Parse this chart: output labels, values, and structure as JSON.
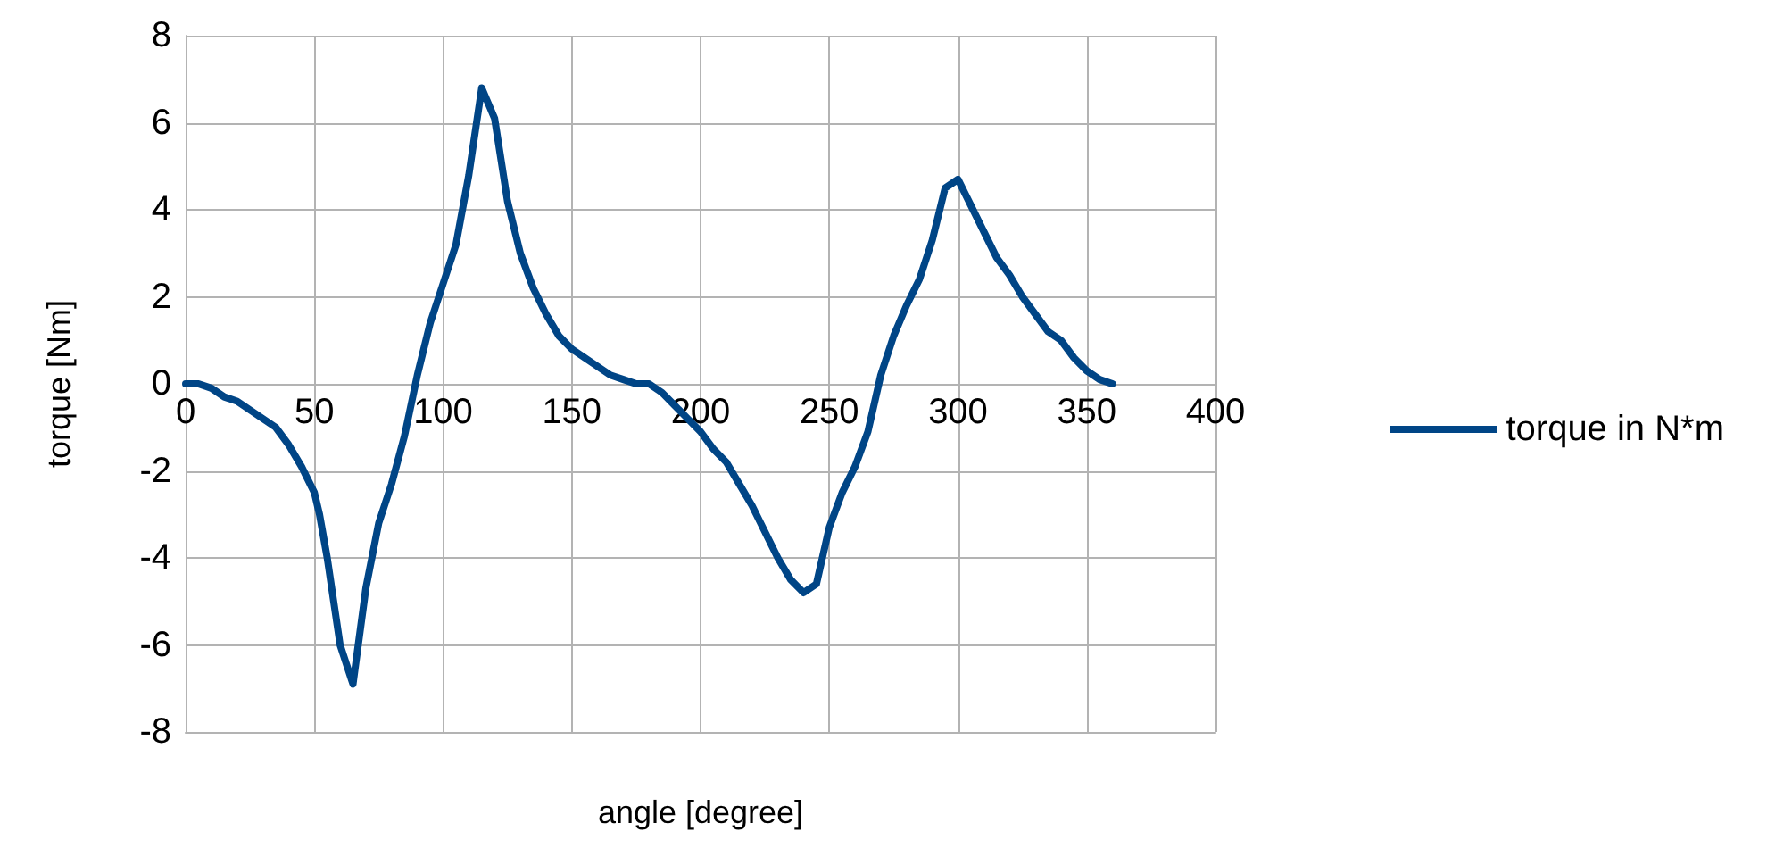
{
  "chart_data": {
    "type": "line",
    "xlabel": "angle [degree]",
    "ylabel": "torque [Nm]",
    "xlim": [
      0,
      400
    ],
    "xticks": [
      0,
      50,
      100,
      150,
      200,
      250,
      300,
      350,
      400
    ],
    "ylim": [
      -8,
      8
    ],
    "yticks": [
      -8,
      -6,
      -4,
      -2,
      0,
      2,
      4,
      6,
      8
    ],
    "grid": true,
    "legend": "right",
    "marker": "none",
    "line_style": "solid",
    "x": [
      0,
      5,
      10,
      15,
      20,
      25,
      30,
      35,
      40,
      45,
      50,
      52,
      55,
      60,
      65,
      70,
      75,
      80,
      85,
      90,
      95,
      100,
      105,
      110,
      115,
      120,
      125,
      130,
      135,
      140,
      145,
      150,
      155,
      160,
      165,
      170,
      175,
      180,
      185,
      190,
      195,
      200,
      205,
      210,
      215,
      220,
      225,
      230,
      235,
      240,
      245,
      250,
      255,
      260,
      265,
      270,
      275,
      280,
      285,
      290,
      295,
      300,
      305,
      310,
      315,
      320,
      325,
      330,
      335,
      340,
      345,
      350,
      355,
      360
    ],
    "series": [
      {
        "name": "torque in N*m",
        "color": "#004586",
        "values": [
          0,
          0,
          -0.1,
          -0.3,
          -0.4,
          -0.6,
          -0.8,
          -1.0,
          -1.4,
          -1.9,
          -2.5,
          -3.0,
          -4.0,
          -6.0,
          -6.9,
          -4.7,
          -3.2,
          -2.3,
          -1.2,
          0.2,
          1.4,
          2.3,
          3.2,
          4.8,
          6.8,
          6.1,
          4.2,
          3.0,
          2.2,
          1.6,
          1.1,
          0.8,
          0.6,
          0.4,
          0.2,
          0.1,
          0,
          0,
          -0.2,
          -0.5,
          -0.8,
          -1.1,
          -1.5,
          -1.8,
          -2.3,
          -2.8,
          -3.4,
          -4.0,
          -4.5,
          -4.8,
          -4.6,
          -3.3,
          -2.5,
          -1.9,
          -1.1,
          0.2,
          1.1,
          1.8,
          2.4,
          3.3,
          4.5,
          4.7,
          4.1,
          3.5,
          2.9,
          2.5,
          2.0,
          1.6,
          1.2,
          1.0,
          0.6,
          0.3,
          0.1,
          0
        ]
      }
    ]
  }
}
